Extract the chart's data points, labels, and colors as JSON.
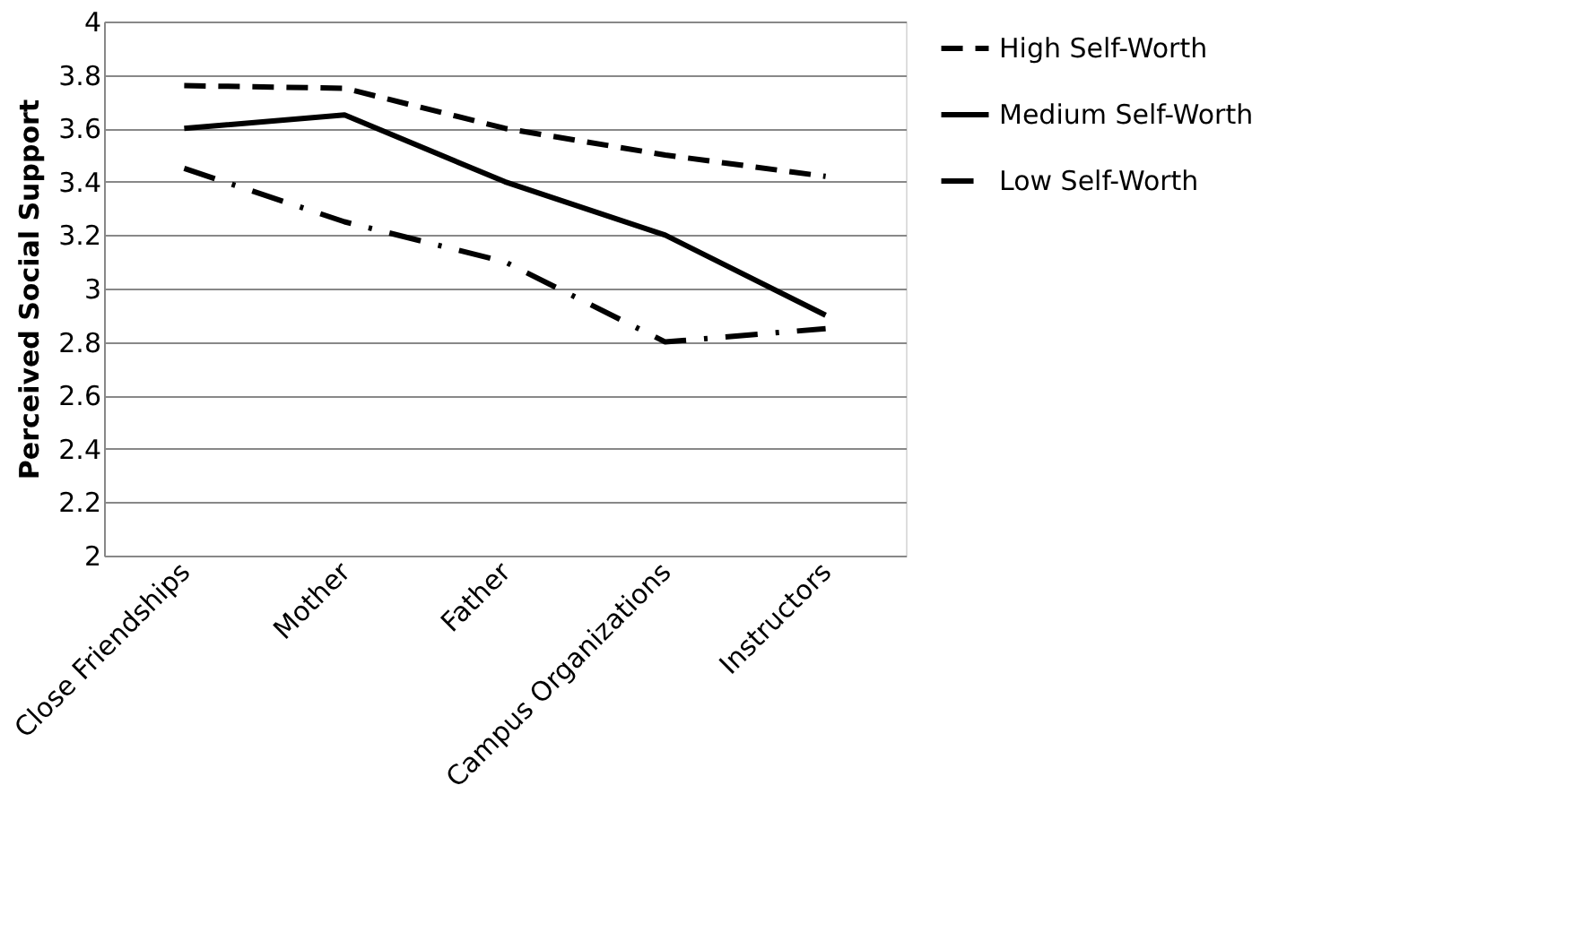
{
  "chart_data": {
    "type": "line",
    "ylabel": "Perceived Social Support",
    "categories": [
      "Close Friendships",
      "Mother",
      "Father",
      "Campus Organizations",
      "Instructors"
    ],
    "series": [
      {
        "name": "High Self-Worth",
        "color": "#000000",
        "line_style": "dashed",
        "values": [
          3.76,
          3.75,
          3.6,
          3.5,
          3.42
        ]
      },
      {
        "name": "Medium Self-Worth",
        "color": "#000000",
        "line_style": "solid",
        "values": [
          3.6,
          3.65,
          3.4,
          3.2,
          2.9
        ]
      },
      {
        "name": "Low Self-Worth",
        "color": "#000000",
        "line_style": "dashdot",
        "values": [
          3.45,
          3.25,
          3.1,
          2.8,
          2.85
        ]
      }
    ],
    "ylim": [
      2,
      4
    ],
    "yticks": [
      2,
      2.2,
      2.4,
      2.6,
      2.8,
      3,
      3.2,
      3.4,
      3.6,
      3.8,
      4
    ],
    "grid": "y",
    "legend": "right",
    "marker": "none"
  }
}
